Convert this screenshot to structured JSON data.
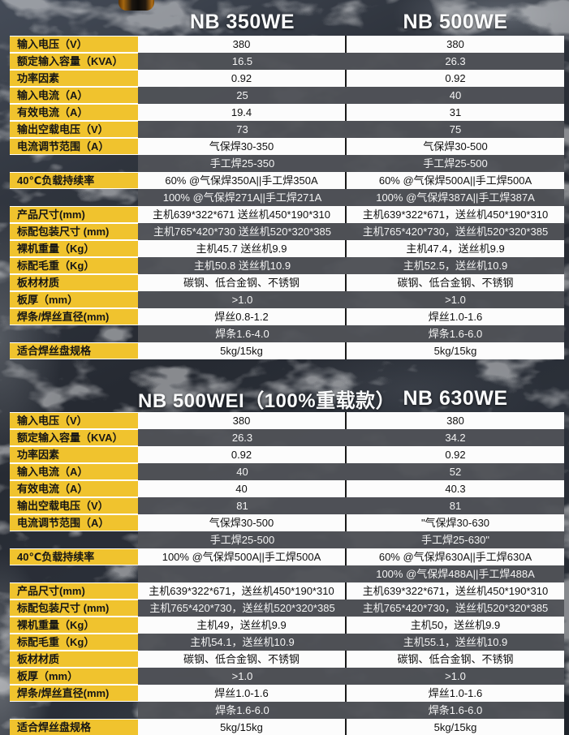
{
  "colors": {
    "label_bg": "#F0C32E",
    "row_light_bg": "#FCFCFC",
    "row_dark_bg": "#515257",
    "divider": "#1A1A1A",
    "header_text": "#FAFBFC",
    "background_base": "#2A2E36"
  },
  "decor": {
    "knob": "machine-knob-cropped-at-top"
  },
  "tables": [
    {
      "name": "spec-table-1",
      "headers": [
        "NB 350WE",
        "NB 500WE"
      ],
      "rows": [
        {
          "label": "输入电压（V）",
          "c1": "380",
          "c2": "380",
          "shade": "light"
        },
        {
          "label": "额定输入容量（KVA）",
          "c1": "16.5",
          "c2": "26.3",
          "shade": "dark"
        },
        {
          "label": "功率因素",
          "c1": "0.92",
          "c2": "0.92",
          "shade": "light"
        },
        {
          "label": "输入电流（A）",
          "c1": "25",
          "c2": "40",
          "shade": "dark"
        },
        {
          "label": "有效电流（A）",
          "c1": "19.4",
          "c2": "31",
          "shade": "light"
        },
        {
          "label": "输出空载电压（V）",
          "c1": "73",
          "c2": "75",
          "shade": "dark"
        },
        {
          "label": "电流调节范围（A）",
          "c1": "气保焊30-350",
          "c2": "气保焊30-500",
          "shade": "light"
        },
        {
          "label": "",
          "c1": "手工焊25-350",
          "c2": "手工焊25-500",
          "shade": "dark"
        },
        {
          "label": "40℃负载持续率",
          "c1": "60% @气保焊350A||手工焊350A",
          "c2": "60% @气保焊500A||手工焊500A",
          "shade": "light"
        },
        {
          "label": "",
          "c1": "100% @气保焊271A||手工焊271A",
          "c2": "100% @气保焊387A||手工焊387A",
          "shade": "dark"
        },
        {
          "label": "产品尺寸(mm)",
          "c1": "主机639*322*671 送丝机450*190*310",
          "c2": "主机639*322*671，送丝机450*190*310",
          "shade": "light"
        },
        {
          "label": "标配包装尺寸 (mm)",
          "c1": "主机765*420*730 送丝机520*320*385",
          "c2": "主机765*420*730，送丝机520*320*385",
          "shade": "dark"
        },
        {
          "label": "裸机重量（Kg）",
          "c1": "主机45.7 送丝机9.9",
          "c2": "主机47.4，送丝机9.9",
          "shade": "light"
        },
        {
          "label": "标配毛重（Kg）",
          "c1": "主机50.8 送丝机10.9",
          "c2": "主机52.5，送丝机10.9",
          "shade": "dark"
        },
        {
          "label": "板材材质",
          "c1": "碳钢、低合金钢、不锈钢",
          "c2": "碳钢、低合金钢、不锈钢",
          "shade": "light"
        },
        {
          "label": "板厚（mm）",
          "c1": ">1.0",
          "c2": ">1.0",
          "shade": "dark"
        },
        {
          "label": "焊条/焊丝直径(mm)",
          "c1": "焊丝0.8-1.2",
          "c2": "焊丝1.0-1.6",
          "shade": "light"
        },
        {
          "label": "",
          "c1": "焊条1.6-4.0",
          "c2": "焊条1.6-6.0",
          "shade": "dark"
        },
        {
          "label": "适合焊丝盘规格",
          "c1": "5kg/15kg",
          "c2": "5kg/15kg",
          "shade": "light"
        }
      ]
    },
    {
      "name": "spec-table-2",
      "headers": [
        "NB 500WEI（100%重载款）",
        "NB 630WE"
      ],
      "rows": [
        {
          "label": "输入电压（V）",
          "c1": "380",
          "c2": "380",
          "shade": "light"
        },
        {
          "label": "额定输入容量（KVA）",
          "c1": "26.3",
          "c2": "34.2",
          "shade": "dark"
        },
        {
          "label": "功率因素",
          "c1": "0.92",
          "c2": "0.92",
          "shade": "light"
        },
        {
          "label": "输入电流（A）",
          "c1": "40",
          "c2": "52",
          "shade": "dark"
        },
        {
          "label": "有效电流（A）",
          "c1": "40",
          "c2": "40.3",
          "shade": "light"
        },
        {
          "label": "输出空载电压（V）",
          "c1": "81",
          "c2": "81",
          "shade": "dark"
        },
        {
          "label": "电流调节范围（A）",
          "c1": "气保焊30-500",
          "c2": "\"气保焊30-630",
          "shade": "light"
        },
        {
          "label": "",
          "c1": "手工焊25-500",
          "c2": "手工焊25-630\"",
          "shade": "dark"
        },
        {
          "label": "40℃负载持续率",
          "c1": "100% @气保焊500A||手工焊500A",
          "c2": "60% @气保焊630A||手工焊630A",
          "shade": "light"
        },
        {
          "label": "",
          "c1": "",
          "c2": "100% @气保焊488A||手工焊488A",
          "shade": "dark"
        },
        {
          "label": "产品尺寸(mm)",
          "c1": "主机639*322*671，送丝机450*190*310",
          "c2": "主机639*322*671，送丝机450*190*310",
          "shade": "light"
        },
        {
          "label": "标配包装尺寸 (mm)",
          "c1": "主机765*420*730，送丝机520*320*385",
          "c2": "主机765*420*730，送丝机520*320*385",
          "shade": "dark"
        },
        {
          "label": "裸机重量（Kg）",
          "c1": "主机49，送丝机9.9",
          "c2": "主机50，送丝机9.9",
          "shade": "light"
        },
        {
          "label": "标配毛重（Kg）",
          "c1": "主机54.1，送丝机10.9",
          "c2": "主机55.1，送丝机10.9",
          "shade": "dark"
        },
        {
          "label": "板材材质",
          "c1": "碳钢、低合金钢、不锈钢",
          "c2": "碳钢、低合金钢、不锈钢",
          "shade": "light"
        },
        {
          "label": "板厚（mm）",
          "c1": ">1.0",
          "c2": ">1.0",
          "shade": "dark"
        },
        {
          "label": "焊条/焊丝直径(mm)",
          "c1": "焊丝1.0-1.6",
          "c2": "焊丝1.0-1.6",
          "shade": "light"
        },
        {
          "label": "",
          "c1": "焊条1.6-6.0",
          "c2": "焊条1.6-6.0",
          "shade": "dark"
        },
        {
          "label": "适合焊丝盘规格",
          "c1": "5kg/15kg",
          "c2": "5kg/15kg",
          "shade": "light"
        }
      ]
    }
  ]
}
